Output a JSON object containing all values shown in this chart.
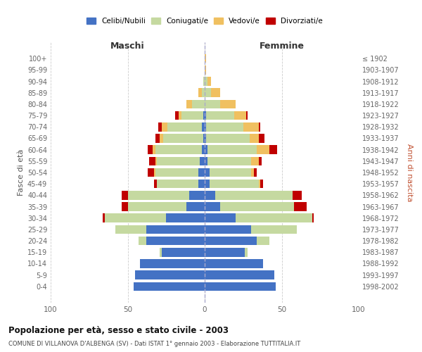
{
  "age_groups": [
    "0-4",
    "5-9",
    "10-14",
    "15-19",
    "20-24",
    "25-29",
    "30-34",
    "35-39",
    "40-44",
    "45-49",
    "50-54",
    "55-59",
    "60-64",
    "65-69",
    "70-74",
    "75-79",
    "80-84",
    "85-89",
    "90-94",
    "95-99",
    "100+"
  ],
  "birth_years": [
    "1998-2002",
    "1993-1997",
    "1988-1992",
    "1983-1987",
    "1978-1982",
    "1973-1977",
    "1968-1972",
    "1963-1967",
    "1958-1962",
    "1953-1957",
    "1948-1952",
    "1943-1947",
    "1938-1942",
    "1933-1937",
    "1928-1932",
    "1923-1927",
    "1918-1922",
    "1913-1917",
    "1908-1912",
    "1903-1907",
    "≤ 1902"
  ],
  "colors": {
    "celibi": "#4472c4",
    "coniugati": "#c5d9a0",
    "vedovi": "#f0c060",
    "divorziati": "#c00000"
  },
  "males": {
    "celibi": [
      46,
      45,
      42,
      28,
      38,
      38,
      25,
      12,
      10,
      4,
      4,
      3,
      2,
      1,
      2,
      1,
      0,
      0,
      0,
      0,
      0
    ],
    "coniugati": [
      0,
      0,
      0,
      1,
      5,
      20,
      40,
      38,
      40,
      27,
      28,
      28,
      30,
      26,
      22,
      14,
      8,
      2,
      1,
      0,
      0
    ],
    "vedovi": [
      0,
      0,
      0,
      0,
      0,
      0,
      0,
      0,
      0,
      0,
      1,
      1,
      2,
      2,
      4,
      2,
      4,
      2,
      0,
      0,
      0
    ],
    "divorziati": [
      0,
      0,
      0,
      0,
      0,
      0,
      1,
      4,
      4,
      2,
      4,
      4,
      3,
      3,
      2,
      2,
      0,
      0,
      0,
      0,
      0
    ]
  },
  "females": {
    "celibi": [
      46,
      45,
      38,
      26,
      34,
      30,
      20,
      10,
      7,
      3,
      3,
      2,
      2,
      1,
      1,
      1,
      0,
      0,
      0,
      0,
      0
    ],
    "coniugati": [
      0,
      0,
      0,
      2,
      8,
      30,
      50,
      48,
      50,
      32,
      27,
      28,
      32,
      28,
      24,
      18,
      10,
      4,
      2,
      0,
      0
    ],
    "vedovi": [
      0,
      0,
      0,
      0,
      0,
      0,
      0,
      0,
      0,
      1,
      2,
      5,
      8,
      6,
      10,
      8,
      10,
      6,
      2,
      1,
      1
    ],
    "divorziati": [
      0,
      0,
      0,
      0,
      0,
      0,
      1,
      8,
      6,
      2,
      2,
      2,
      5,
      4,
      1,
      1,
      0,
      0,
      0,
      0,
      0
    ]
  },
  "title": "Popolazione per età, sesso e stato civile - 2003",
  "subtitle": "COMUNE DI VILLANOVA D'ALBENGA (SV) - Dati ISTAT 1° gennaio 2003 - Elaborazione TUTTITALIA.IT",
  "xlabel_left": "Maschi",
  "xlabel_right": "Femmine",
  "ylabel_left": "Fasce di età",
  "ylabel_right": "Anni di nascita",
  "legend_labels": [
    "Celibi/Nubili",
    "Coniugati/e",
    "Vedovi/e",
    "Divorziati/e"
  ],
  "xlim": 100,
  "background_color": "#ffffff",
  "grid_color": "#cccccc"
}
